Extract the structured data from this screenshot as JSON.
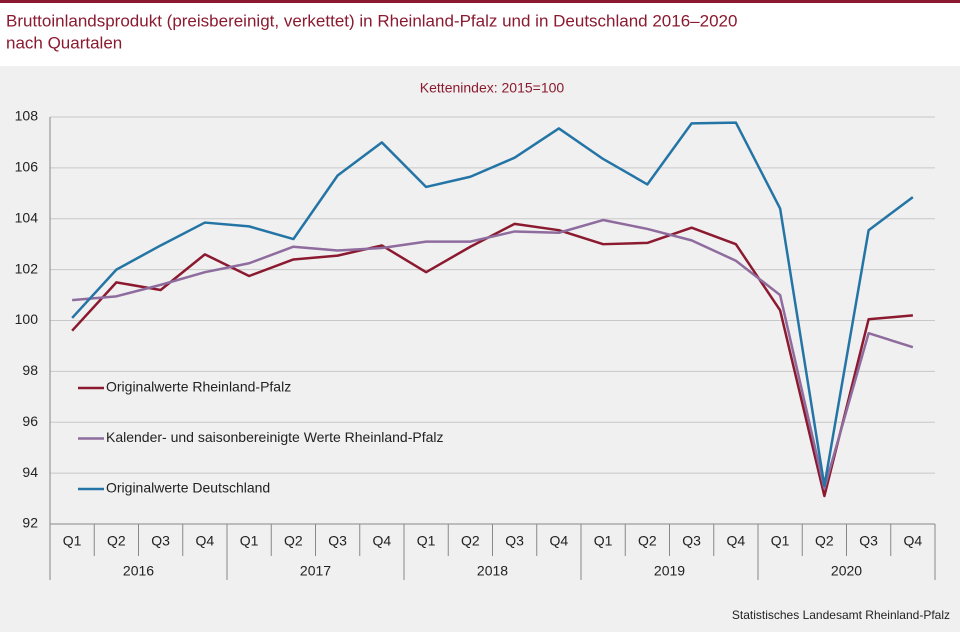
{
  "chart_data": {
    "type": "line",
    "title": [
      "Bruttoinlandsprodukt (preisbereinigt, verkettet) in Rheinland-Pfalz und in Deutschland 2016–2020",
      "nach Quartalen"
    ],
    "subtitle": "Kettenindex:  2015=100",
    "source": "Statistisches Landesamt Rheinland-Pfalz",
    "categories": [
      "Q1",
      "Q2",
      "Q3",
      "Q4",
      "Q1",
      "Q2",
      "Q3",
      "Q4",
      "Q1",
      "Q2",
      "Q3",
      "Q4",
      "Q1",
      "Q2",
      "Q3",
      "Q4",
      "Q1",
      "Q2",
      "Q3",
      "Q4"
    ],
    "years": [
      "2016",
      "2017",
      "2018",
      "2019",
      "2020"
    ],
    "ylim": [
      92,
      108
    ],
    "yticks": [
      92,
      94,
      96,
      98,
      100,
      102,
      104,
      106,
      108
    ],
    "grid": true,
    "legend": "left",
    "series": [
      {
        "name": "Originalwerte Rheinland-Pfalz",
        "color": "#8b1a30",
        "values": [
          99.6,
          101.5,
          101.2,
          102.6,
          101.75,
          102.4,
          102.55,
          102.95,
          101.9,
          102.9,
          103.8,
          103.55,
          103.0,
          103.05,
          103.65,
          103.0,
          100.4,
          93.1,
          100.05,
          100.2
        ]
      },
      {
        "name": "Kalender- und saisonbereinigte Werte Rheinland-Pfalz",
        "color": "#8e6c9e",
        "values": [
          100.8,
          100.95,
          101.4,
          101.9,
          102.25,
          102.9,
          102.75,
          102.85,
          103.1,
          103.1,
          103.5,
          103.45,
          103.95,
          103.6,
          103.15,
          102.35,
          101.0,
          93.4,
          99.5,
          98.95
        ]
      },
      {
        "name": "Originalwerte Deutschland",
        "color": "#2475a5",
        "values": [
          100.1,
          102.0,
          102.95,
          103.85,
          103.7,
          103.2,
          105.7,
          107.0,
          105.25,
          105.65,
          106.4,
          107.55,
          106.35,
          105.35,
          107.75,
          107.78,
          104.4,
          93.5,
          103.55,
          104.85
        ]
      }
    ]
  }
}
